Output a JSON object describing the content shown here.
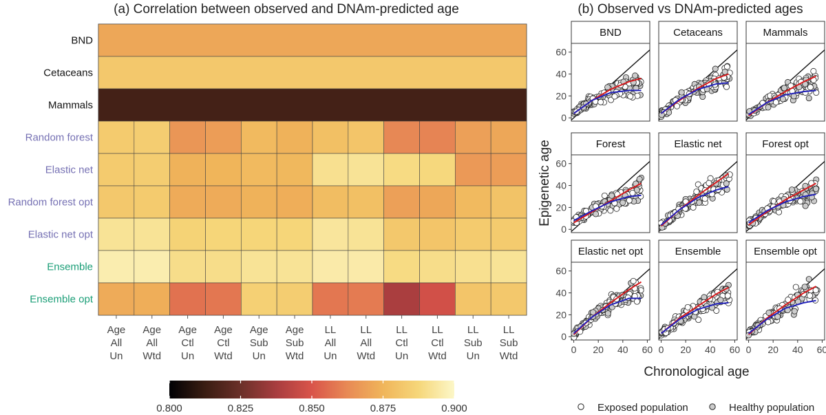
{
  "chart_data": [
    {
      "type": "heatmap",
      "title": "(a) Correlation between observed and DNAm-predicted age",
      "rows": [
        {
          "label": "BND",
          "group": "clock"
        },
        {
          "label": "Cetaceans",
          "group": "clock"
        },
        {
          "label": "Mammals",
          "group": "clock"
        },
        {
          "label": "Random forest",
          "group": "model"
        },
        {
          "label": "Elastic net",
          "group": "model"
        },
        {
          "label": "Random forest opt",
          "group": "model"
        },
        {
          "label": "Elastic net opt",
          "group": "model"
        },
        {
          "label": "Ensemble",
          "group": "ensemble"
        },
        {
          "label": "Ensemble opt",
          "group": "ensemble"
        }
      ],
      "columns": [
        [
          "Age",
          "All",
          "Un"
        ],
        [
          "Age",
          "All",
          "Wtd"
        ],
        [
          "Age",
          "Ctl",
          "Un"
        ],
        [
          "Age",
          "Ctl",
          "Wtd"
        ],
        [
          "Age",
          "Sub",
          "Un"
        ],
        [
          "Age",
          "Sub",
          "Wtd"
        ],
        [
          "LL",
          "All",
          "Un"
        ],
        [
          "LL",
          "All",
          "Wtd"
        ],
        [
          "LL",
          "Ctl",
          "Un"
        ],
        [
          "LL",
          "Ctl",
          "Wtd"
        ],
        [
          "LL",
          "Sub",
          "Un"
        ],
        [
          "LL",
          "Sub",
          "Wtd"
        ]
      ],
      "full_width_rows": {
        "BND": 0.871,
        "Cetaceans": 0.882,
        "Mammals": 0.815
      },
      "values": [
        [
          0.871,
          0.871,
          0.871,
          0.871,
          0.871,
          0.871,
          0.871,
          0.871,
          0.871,
          0.871,
          0.871,
          0.871
        ],
        [
          0.882,
          0.882,
          0.882,
          0.882,
          0.882,
          0.882,
          0.882,
          0.882,
          0.882,
          0.882,
          0.882,
          0.882
        ],
        [
          0.815,
          0.815,
          0.815,
          0.815,
          0.815,
          0.815,
          0.815,
          0.815,
          0.815,
          0.815,
          0.815,
          0.815
        ],
        [
          0.883,
          0.884,
          0.866,
          0.868,
          0.877,
          0.874,
          0.879,
          0.881,
          0.862,
          0.861,
          0.869,
          0.871
        ],
        [
          0.883,
          0.884,
          0.874,
          0.875,
          0.877,
          0.876,
          0.891,
          0.892,
          0.889,
          0.888,
          0.867,
          0.868
        ],
        [
          0.882,
          0.883,
          0.872,
          0.872,
          0.874,
          0.873,
          0.878,
          0.879,
          0.869,
          0.871,
          0.877,
          0.88
        ],
        [
          0.892,
          0.892,
          0.886,
          0.887,
          0.887,
          0.887,
          0.893,
          0.892,
          0.882,
          0.881,
          0.883,
          0.883
        ],
        [
          0.896,
          0.896,
          0.89,
          0.89,
          0.892,
          0.892,
          0.895,
          0.895,
          0.889,
          0.89,
          0.891,
          0.892
        ],
        [
          0.872,
          0.873,
          0.857,
          0.858,
          0.885,
          0.884,
          0.858,
          0.859,
          0.838,
          0.848,
          0.881,
          0.882
        ]
      ],
      "colorbar": {
        "min": 0.8,
        "max": 0.9,
        "ticks": [
          "0.800",
          "0.825",
          "0.850",
          "0.875",
          "0.900"
        ]
      },
      "colors": {
        "clock_label": "#111111",
        "model_label": "#7570b3",
        "ensemble_label": "#1b9e77",
        "scale": [
          "#000004",
          "#3a1d12",
          "#6b3029",
          "#a83d3f",
          "#d9544a",
          "#e88a55",
          "#f0b55a",
          "#f6d77a",
          "#fcf7c8"
        ]
      }
    },
    {
      "type": "scatter",
      "title": "(b) Observed vs DNAm-predicted ages",
      "xlabel": "Chronological age",
      "ylabel": "Epigenetic age",
      "xlim": [
        -2,
        62
      ],
      "ylim": [
        -3,
        68
      ],
      "xticks": [
        0,
        20,
        40,
        60
      ],
      "yticks": [
        0,
        20,
        40,
        60
      ],
      "panels": [
        {
          "label": "BND",
          "red": [
            [
              0,
              4
            ],
            [
              15,
              16
            ],
            [
              30,
              26
            ],
            [
              45,
              33
            ],
            [
              55,
              36
            ]
          ],
          "blue": [
            [
              0,
              4
            ],
            [
              15,
              16
            ],
            [
              30,
              23
            ],
            [
              45,
              25
            ],
            [
              55,
              25
            ]
          ]
        },
        {
          "label": "Cetaceans",
          "red": [
            [
              0,
              4
            ],
            [
              15,
              16
            ],
            [
              30,
              27
            ],
            [
              45,
              36
            ],
            [
              55,
              40
            ]
          ],
          "blue": [
            [
              0,
              4
            ],
            [
              15,
              17
            ],
            [
              30,
              26
            ],
            [
              45,
              31
            ],
            [
              55,
              32
            ]
          ]
        },
        {
          "label": "Mammals",
          "red": [
            [
              0,
              2
            ],
            [
              15,
              14
            ],
            [
              30,
              24
            ],
            [
              45,
              33
            ],
            [
              55,
              38
            ]
          ],
          "blue": [
            [
              0,
              3
            ],
            [
              15,
              14
            ],
            [
              30,
              21
            ],
            [
              45,
              24
            ],
            [
              55,
              25
            ]
          ]
        },
        {
          "label": "Forest",
          "red": [
            [
              0,
              6
            ],
            [
              15,
              16
            ],
            [
              30,
              26
            ],
            [
              45,
              36
            ],
            [
              55,
              42
            ]
          ],
          "blue": [
            [
              0,
              8
            ],
            [
              15,
              17
            ],
            [
              30,
              25
            ],
            [
              45,
              30
            ],
            [
              55,
              31
            ]
          ]
        },
        {
          "label": "Elastic net",
          "red": [
            [
              0,
              3
            ],
            [
              15,
              18
            ],
            [
              30,
              31
            ],
            [
              45,
              43
            ],
            [
              55,
              51
            ]
          ],
          "blue": [
            [
              0,
              4
            ],
            [
              15,
              18
            ],
            [
              30,
              29
            ],
            [
              45,
              36
            ],
            [
              55,
              39
            ]
          ]
        },
        {
          "label": "Forest opt",
          "red": [
            [
              0,
              4
            ],
            [
              15,
              16
            ],
            [
              30,
              27
            ],
            [
              45,
              36
            ],
            [
              55,
              42
            ]
          ],
          "blue": [
            [
              0,
              6
            ],
            [
              15,
              17
            ],
            [
              30,
              25
            ],
            [
              45,
              30
            ],
            [
              55,
              32
            ]
          ]
        },
        {
          "label": "Elastic net opt",
          "red": [
            [
              0,
              2
            ],
            [
              15,
              18
            ],
            [
              30,
              31
            ],
            [
              45,
              43
            ],
            [
              55,
              50
            ]
          ],
          "blue": [
            [
              0,
              3
            ],
            [
              15,
              18
            ],
            [
              30,
              29
            ],
            [
              45,
              35
            ],
            [
              55,
              35
            ]
          ]
        },
        {
          "label": "Ensemble",
          "red": [
            [
              0,
              3
            ],
            [
              15,
              17
            ],
            [
              30,
              28
            ],
            [
              45,
              39
            ],
            [
              55,
              45
            ]
          ],
          "blue": [
            [
              0,
              3
            ],
            [
              15,
              16
            ],
            [
              30,
              25
            ],
            [
              45,
              30
            ],
            [
              55,
              31
            ]
          ]
        },
        {
          "label": "Ensemble opt",
          "red": [
            [
              0,
              2
            ],
            [
              15,
              17
            ],
            [
              30,
              29
            ],
            [
              45,
              40
            ],
            [
              55,
              46
            ]
          ],
          "blue": [
            [
              0,
              3
            ],
            [
              15,
              16
            ],
            [
              30,
              26
            ],
            [
              45,
              31
            ],
            [
              55,
              33
            ]
          ]
        }
      ],
      "legend": [
        "Exposed population",
        "Healthy population"
      ],
      "colors": {
        "identity": "#111111",
        "red_fit": "#d7191c",
        "blue_fit": "#2222bb",
        "exposed_fill": "#ffffff",
        "healthy_fill": "#cccccc"
      }
    }
  ]
}
